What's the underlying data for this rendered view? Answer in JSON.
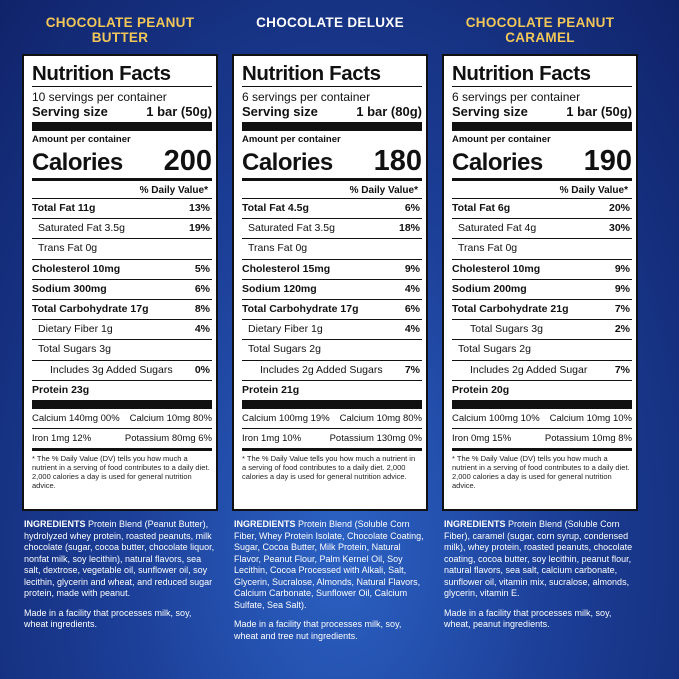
{
  "products": [
    {
      "name": "CHOCOLATE PEANUT BUTTER",
      "label": {
        "title": "Nutrition Facts",
        "servings": "10 servings per container",
        "serving_size_label": "Serving size",
        "serving_size_value": "1 bar (50g)",
        "amount_label": "Amount per container",
        "calories_label": "Calories",
        "calories_value": "200",
        "dv_header": "% Daily Value*",
        "nutrients": [
          {
            "name": "Total Fat 11g",
            "pct": "13%",
            "style": "bold"
          },
          {
            "name": "Saturated Fat 3.5g",
            "pct": "19%",
            "style": "ind1"
          },
          {
            "name": "Trans Fat 0g",
            "pct": "",
            "style": "ind1"
          },
          {
            "name": "Cholesterol 10mg",
            "pct": "5%",
            "style": "bold"
          },
          {
            "name": "Sodium 300mg",
            "pct": "6%",
            "style": "bold"
          },
          {
            "name": "Total Carbohydrate 17g",
            "pct": "8%",
            "style": "bold"
          },
          {
            "name": "Dietary Fiber 1g",
            "pct": "4%",
            "style": "ind1"
          },
          {
            "name": "Total Sugars 3g",
            "pct": "",
            "style": "ind1"
          },
          {
            "name": "Includes 3g Added Sugars",
            "pct": "0%",
            "style": "ind2"
          },
          {
            "name": "Protein 23g",
            "pct": "",
            "style": "bold"
          }
        ],
        "micros": [
          {
            "left": "Calcium 140mg 00%",
            "right": "Calcium 10mg 80%"
          },
          {
            "left": "Iron 1mg 12%",
            "right": "Potassium 80mg 6%"
          }
        ],
        "footnote": "* The % Daily Value (DV) tells you how much a nutrient in a serving of food contributes to a daily diet. 2,000 calories a day is used for general nutrition advice."
      },
      "ingredients_label": "INGREDIENTS",
      "ingredients_text": "Protein Blend (Peanut Butter), hydrolyzed whey protein, roasted peanuts, milk chocolate (sugar, cocoa butter, chocolate liquor, nonfat milk, soy lecithin), natural flavors, sea salt, dextrose, vegetable oil, sunflower oil, soy lecithin, glycerin and wheat, and reduced sugar protein, made with peanut.",
      "made_in": "Made in a facility that processes milk, soy, wheat ingredients."
    },
    {
      "name": "CHOCOLATE DELUXE",
      "label": {
        "title": "Nutrition Facts",
        "servings": "6 servings per container",
        "serving_size_label": "Serving size",
        "serving_size_value": "1 bar (80g)",
        "amount_label": "Amount per container",
        "calories_label": "Calories",
        "calories_value": "180",
        "dv_header": "% Daily Value*",
        "nutrients": [
          {
            "name": "Total Fat 4.5g",
            "pct": "6%",
            "style": "bold"
          },
          {
            "name": "Saturated Fat 3.5g",
            "pct": "18%",
            "style": "ind1"
          },
          {
            "name": "Trans Fat 0g",
            "pct": "",
            "style": "ind1"
          },
          {
            "name": "Cholesterol 15mg",
            "pct": "9%",
            "style": "bold"
          },
          {
            "name": "Sodium 120mg",
            "pct": "4%",
            "style": "bold"
          },
          {
            "name": "Total Carbohydrate 17g",
            "pct": "6%",
            "style": "bold"
          },
          {
            "name": "Dietary Fiber 1g",
            "pct": "4%",
            "style": "ind1"
          },
          {
            "name": "Total Sugars 2g",
            "pct": "",
            "style": "ind1"
          },
          {
            "name": "Includes 2g Added Sugars",
            "pct": "7%",
            "style": "ind2"
          },
          {
            "name": "Protein 21g",
            "pct": "",
            "style": "bold"
          }
        ],
        "micros": [
          {
            "left": "Calcium 100mg 19%",
            "right": "Calcium 10mg 80%"
          },
          {
            "left": "Iron 1mg 10%",
            "right": "Potassium 130mg 0%"
          }
        ],
        "footnote": "* The % Daily Value tells you how much a nutrient in a serving of food contributes to a daily diet. 2,000 calories a day is used for general nutrition advice."
      },
      "ingredients_label": "INGREDIENTS",
      "ingredients_text": "Protein Blend (Soluble Corn Fiber, Whey Protein Isolate, Chocolate Coating, Sugar, Cocoa Butter, Milk Protein, Natural Flavor, Peanut Flour, Palm Kernel Oil, Soy Lecithin, Cocoa Processed with Alkali, Salt, Glycerin, Sucralose, Almonds, Natural Flavors, Calcium Carbonate, Sunflower Oil, Calcium Sulfate, Sea Salt).",
      "made_in": "Made in a facility that processes milk, soy, wheat and tree nut ingredients."
    },
    {
      "name": "CHOCOLATE PEANUT CARAMEL",
      "label": {
        "title": "Nutrition Facts",
        "servings": "6 servings per container",
        "serving_size_label": "Serving size",
        "serving_size_value": "1 bar (50g)",
        "amount_label": "Amount per container",
        "calories_label": "Calories",
        "calories_value": "190",
        "dv_header": "% Daily Value*",
        "nutrients": [
          {
            "name": "Total Fat 6g",
            "pct": "20%",
            "style": "bold"
          },
          {
            "name": "Saturated Fat 4g",
            "pct": "30%",
            "style": "ind1"
          },
          {
            "name": "Trans Fat 0g",
            "pct": "",
            "style": "ind1"
          },
          {
            "name": "Cholesterol 10mg",
            "pct": "9%",
            "style": "bold"
          },
          {
            "name": "Sodium 200mg",
            "pct": "9%",
            "style": "bold"
          },
          {
            "name": "Total Carbohydrate 21g",
            "pct": "7%",
            "style": "bold"
          },
          {
            "name": "Total Sugars 3g",
            "pct": "2%",
            "style": "ind2"
          },
          {
            "name": "Total Sugars 2g",
            "pct": "",
            "style": "ind1"
          },
          {
            "name": "Includes 2g Added Sugar",
            "pct": "7%",
            "style": "ind2"
          },
          {
            "name": "Protein 20g",
            "pct": "",
            "style": "bold"
          }
        ],
        "micros": [
          {
            "left": "Calcium 100mg 10%",
            "right": "Calcium 10mg 10%"
          },
          {
            "left": "Iron 0mg 15%",
            "right": "Potassium 10mg 8%"
          }
        ],
        "footnote": "* The % Daily Value (DV) tells you how much a nutrient in a serving of food contributes to a daily diet. 2,000 calories a day is used for general nutrition advice."
      },
      "ingredients_label": "INGREDIENTS",
      "ingredients_text": "Protein Blend (Soluble Corn Fiber), caramel (sugar, corn syrup, condensed milk), whey protein, roasted peanuts, chocolate coating, cocoa butter, soy lecithin, peanut flour, natural flavors, sea salt, calcium carbonate, sunflower oil, vitamin mix, sucralose, almonds, glycerin, vitamin E.",
      "made_in": "Made in a facility that processes milk, soy, wheat, peanut ingredients."
    }
  ]
}
